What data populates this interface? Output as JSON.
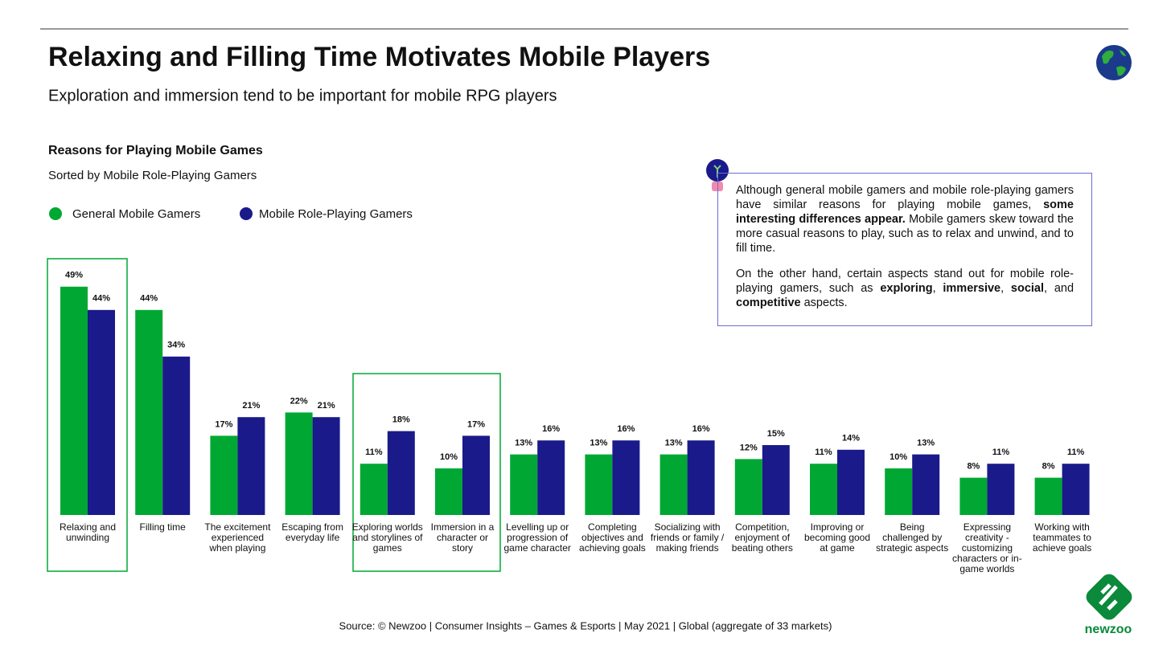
{
  "header": {
    "title": "Relaxing and Filling Time Motivates Mobile Players",
    "subtitle": "Exploration and immersion tend to be important for mobile RPG players"
  },
  "chart_data": {
    "type": "bar",
    "title": "Reasons for Playing Mobile Games",
    "subtitle": "Sorted by Mobile Role-Playing Gamers",
    "categories": [
      "Relaxing and unwinding",
      "Filling time",
      "The excitement experienced when playing",
      "Escaping from everyday life",
      "Exploring worlds and storylines of games",
      "Immersion in a character or story",
      "Levelling up or progression of game character",
      "Completing objectives and achieving goals",
      "Socializing with friends or family / making friends",
      "Competition, enjoyment of beating others",
      "Improving or becoming good at game",
      "Being challenged by strategic aspects",
      "Expressing creativity - customizing characters or in-game worlds",
      "Working with teammates to achieve goals"
    ],
    "series": [
      {
        "name": "General Mobile Gamers",
        "color": "#00a833",
        "values": [
          49,
          44,
          17,
          22,
          11,
          10,
          13,
          13,
          13,
          12,
          11,
          10,
          8,
          8
        ],
        "value_labels": [
          "49%",
          "44%",
          "17%",
          "22%",
          "11%",
          "10%",
          "13%",
          "13%",
          "13%",
          "12%",
          "11%",
          "10%",
          "8%",
          "8%"
        ]
      },
      {
        "name": "Mobile Role-Playing Gamers",
        "color": "#1b1a8a",
        "values": [
          44,
          34,
          21,
          21,
          18,
          17,
          16,
          16,
          16,
          15,
          14,
          13,
          11,
          11
        ],
        "value_labels": [
          "44%",
          "34%",
          "21%",
          "21%",
          "18%",
          "17%",
          "16%",
          "16%",
          "16%",
          "15%",
          "14%",
          "13%",
          "11%",
          "11%"
        ]
      }
    ],
    "ylim": [
      0,
      50
    ],
    "legend": "top-left"
  },
  "callout": {
    "paragraphs": [
      [
        "Although general mobile gamers and mobile role-playing gamers have similar reasons for playing mobile games, ",
        "some interesting differences appear.",
        " Mobile gamers skew toward the more casual reasons to play, such as to relax and unwind, and to fill time."
      ],
      [
        "On the other hand, certain aspects stand out for mobile role-playing gamers, such as ",
        "exploring",
        ", ",
        "immersive",
        ", ",
        "social",
        ", and ",
        "competitive",
        " aspects."
      ]
    ]
  },
  "footer": {
    "source": "Source: © Newzoo | Consumer Insights – Games & Esports | May 2021 | Global (aggregate of 33 markets)",
    "logo": "newzoo"
  }
}
